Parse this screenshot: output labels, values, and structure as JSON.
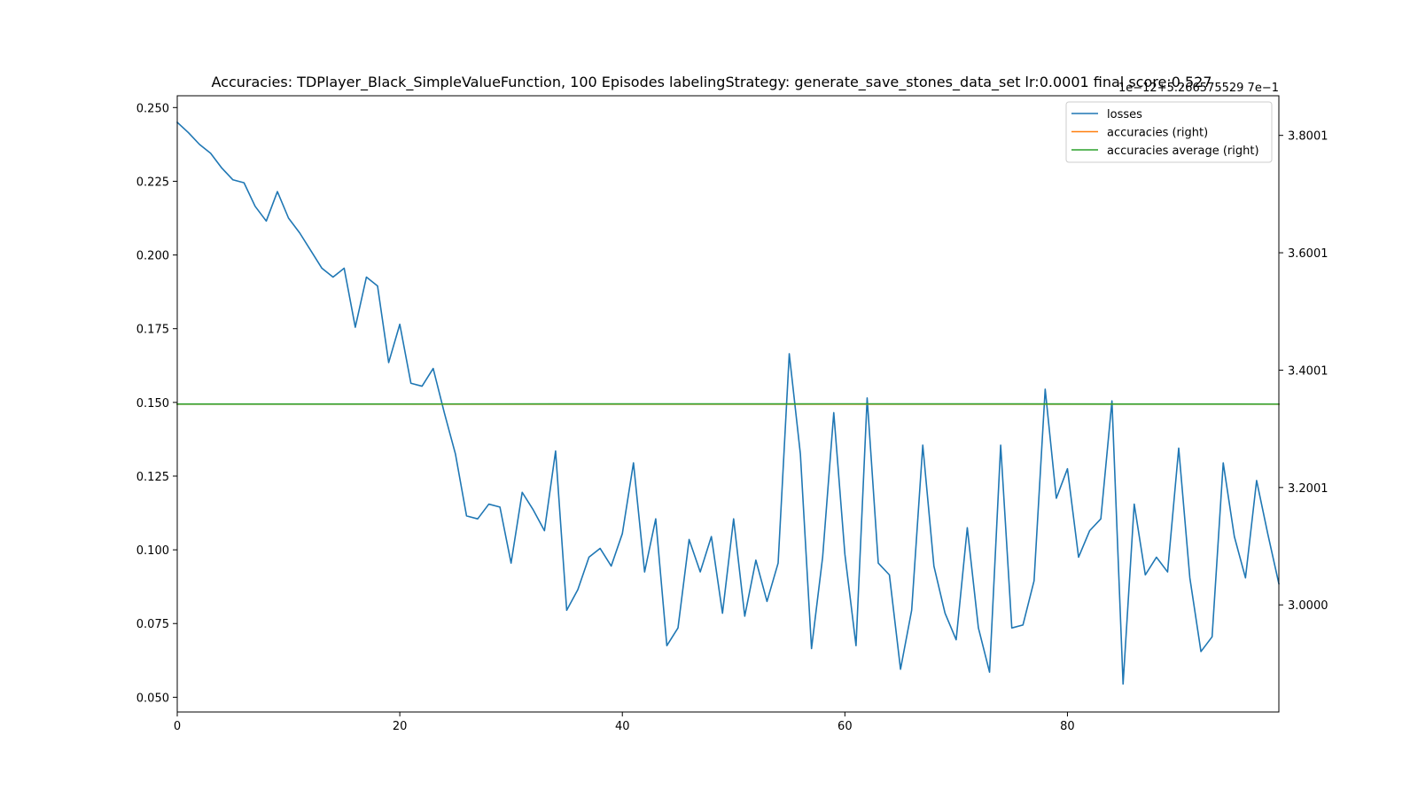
{
  "chart_data": {
    "type": "line",
    "title": "Accuracies: TDPlayer_Black_SimpleValueFunction, 100 Episodes labelingStrategy: generate_save_stones_data_set lr:0.0001 final score:0.527",
    "offset_text_right": "1e−12+5.266575529 7e−1",
    "xlim": [
      0,
      99
    ],
    "ylim_left": [
      0.045,
      0.254
    ],
    "ylim_right": [
      2.8175,
      3.8675
    ],
    "x_ticks": [
      0,
      20,
      40,
      60,
      80
    ],
    "y_ticks_left": [
      0.05,
      0.075,
      0.1,
      0.125,
      0.15,
      0.175,
      0.2,
      0.225,
      0.25
    ],
    "y_tick_labels_left": [
      "0.050",
      "0.075",
      "0.100",
      "0.125",
      "0.150",
      "0.175",
      "0.200",
      "0.225",
      "0.250"
    ],
    "y_ticks_right": [
      3.0,
      3.2,
      3.4,
      3.6,
      3.8
    ],
    "y_tick_labels_right": [
      "3.0000",
      "3.2001",
      "3.4001",
      "3.6001",
      "3.8001"
    ],
    "legend_position": "top-right",
    "series": [
      {
        "name": "losses",
        "axis": "left",
        "color": "#1f77b4",
        "x": [
          0,
          1,
          2,
          3,
          4,
          5,
          6,
          7,
          8,
          9,
          10,
          11,
          12,
          13,
          14,
          15,
          16,
          17,
          18,
          19,
          20,
          21,
          22,
          23,
          24,
          25,
          26,
          27,
          28,
          29,
          30,
          31,
          32,
          33,
          34,
          35,
          36,
          37,
          38,
          39,
          40,
          41,
          42,
          43,
          44,
          45,
          46,
          47,
          48,
          49,
          50,
          51,
          52,
          53,
          54,
          55,
          56,
          57,
          58,
          59,
          60,
          61,
          62,
          63,
          64,
          65,
          66,
          67,
          68,
          69,
          70,
          71,
          72,
          73,
          74,
          75,
          76,
          77,
          78,
          79,
          80,
          81,
          82,
          83,
          84,
          85,
          86,
          87,
          88,
          89,
          90,
          91,
          92,
          93,
          94,
          95,
          96,
          97,
          98,
          99
        ],
        "values": [
          0.245,
          0.2415,
          0.2375,
          0.2345,
          0.2295,
          0.2255,
          0.2245,
          0.2165,
          0.2115,
          0.2215,
          0.2125,
          0.2075,
          0.2015,
          0.1955,
          0.1925,
          0.1955,
          0.1755,
          0.1925,
          0.1895,
          0.1635,
          0.1765,
          0.1565,
          0.1555,
          0.1615,
          0.1465,
          0.1325,
          0.1115,
          0.1105,
          0.1155,
          0.1145,
          0.0955,
          0.1195,
          0.1135,
          0.1065,
          0.1335,
          0.0795,
          0.0865,
          0.0975,
          0.1005,
          0.0945,
          0.1055,
          0.1295,
          0.0925,
          0.1105,
          0.0675,
          0.0735,
          0.1035,
          0.0925,
          0.1045,
          0.0785,
          0.1105,
          0.0775,
          0.0965,
          0.0825,
          0.0955,
          0.1665,
          0.1325,
          0.0665,
          0.0975,
          0.1465,
          0.0985,
          0.0675,
          0.1515,
          0.0955,
          0.0915,
          0.0595,
          0.0795,
          0.1355,
          0.0945,
          0.0785,
          0.0695,
          0.1075,
          0.0735,
          0.0585,
          0.1355,
          0.0735,
          0.0745,
          0.0895,
          0.1545,
          0.1175,
          0.1275,
          0.0975,
          0.1065,
          0.1105,
          0.1505,
          0.0545,
          0.1155,
          0.0915,
          0.0975,
          0.0925,
          0.1345,
          0.0905,
          0.0655,
          0.0705,
          0.1295,
          0.1045,
          0.0905,
          0.1235,
          0.1055,
          0.0885
        ]
      },
      {
        "name": "accuracies (right)",
        "axis": "right",
        "color": "#ff7f0e",
        "x": [
          0,
          99
        ],
        "values": [
          3.342,
          3.342
        ]
      },
      {
        "name": "accuracies average (right)",
        "axis": "right",
        "color": "#2ca02c",
        "x": [
          0,
          40,
          60,
          99
        ],
        "values": [
          3.3422,
          3.3424,
          3.3425,
          3.3421
        ]
      }
    ]
  }
}
